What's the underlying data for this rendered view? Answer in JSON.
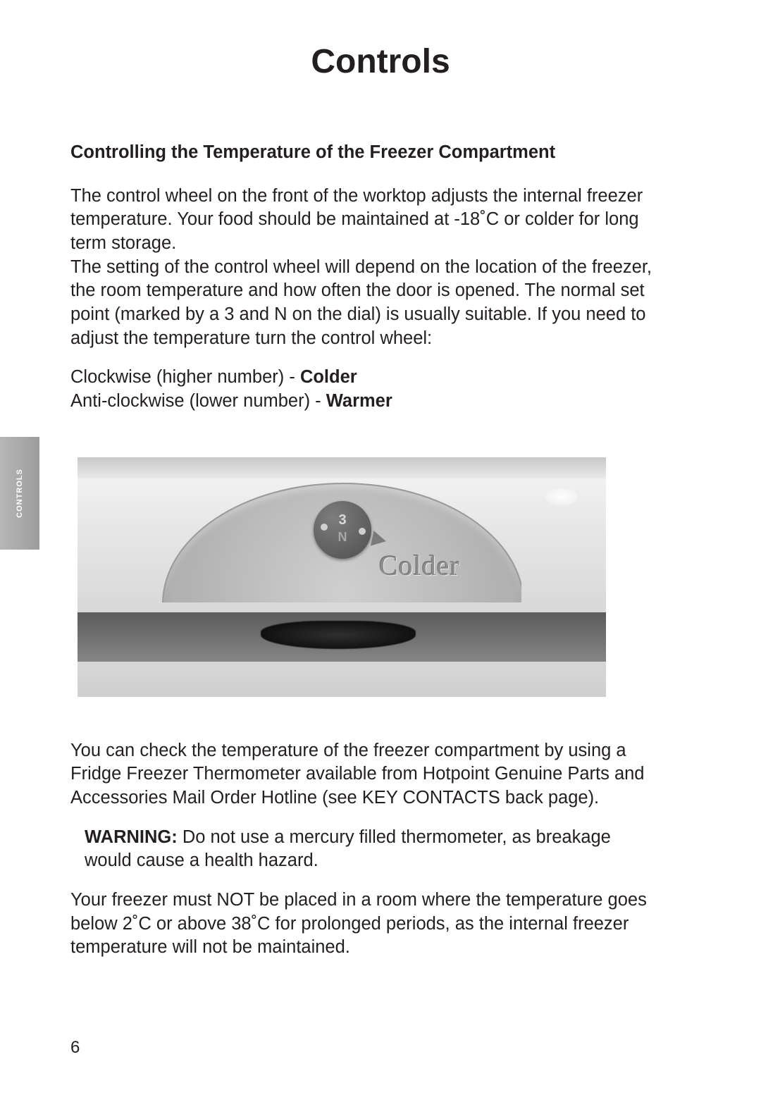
{
  "page": {
    "title": "Controls",
    "number": "6",
    "sidetab": "CONTROLS"
  },
  "section": {
    "heading": "Controlling the Temperature of the Freezer Compartment",
    "p1": "The control wheel on the front of the worktop adjusts the internal freezer temperature.  Your food should be maintained at -18˚C or colder for long term storage.",
    "p2": "The setting of the control wheel will depend on the location of the freezer, the room temperature and how often the door is opened.  The normal set point (marked by a 3 and N on the dial) is usually suitable.  If you need to adjust the temperature turn the control wheel:",
    "dir1_pre": "Clockwise (higher number) - ",
    "dir1_bold": "Colder",
    "dir2_pre": "Anti-clockwise (lower number) - ",
    "dir2_bold": "Warmer",
    "p3": "You can check the temperature of the freezer compartment by using a Fridge Freezer Thermometer available from Hotpoint Genuine Parts and Accessories Mail Order Hotline (see KEY CONTACTS back page).",
    "warn_label": "WARNING:",
    "warn_text": " Do not use a mercury filled thermometer, as breakage would cause a health hazard.",
    "p4": "Your freezer must NOT be placed in a room where the temperature goes below 2˚C or above 38˚C for prolonged periods, as the internal freezer temperature will not be maintained."
  },
  "figure": {
    "dial_number": "3",
    "dial_letter": "N",
    "dial_label": "Colder",
    "colors": {
      "bg": "#dcdcdc",
      "knob": "#4e4e4e",
      "label_color": "#8d8d8d"
    }
  }
}
